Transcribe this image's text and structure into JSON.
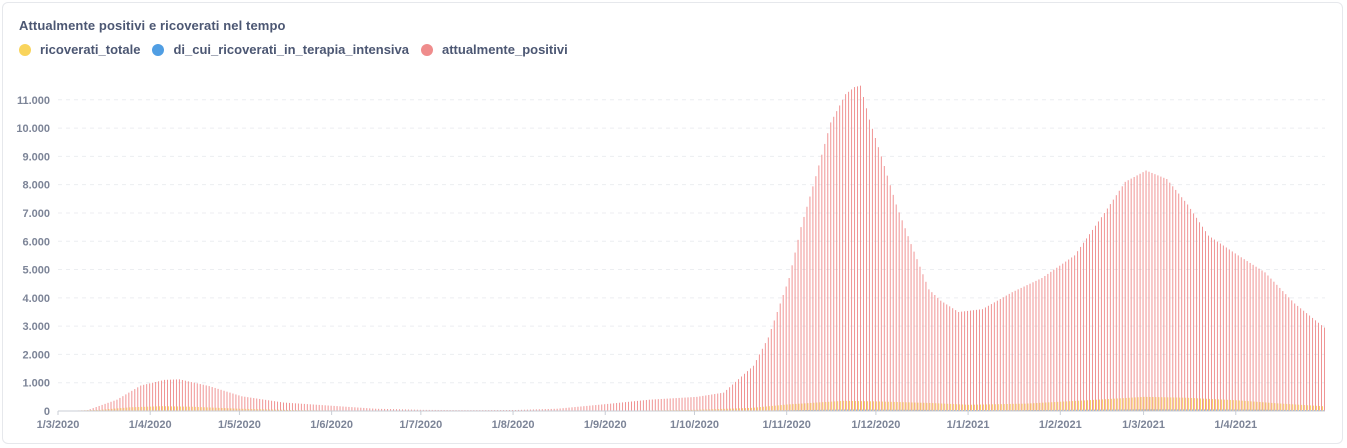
{
  "chart_title": "Attualmente positivi e ricoverati nel tempo",
  "colors": {
    "ricoverati_totale": "#f9d45c",
    "di_cui_ricoverati_in_terapia_intensiva": "#509ee3",
    "attualmente_positivi": "#ef8c8c",
    "grid": "#eceef1",
    "axis": "#c9ced6"
  },
  "chart_data": {
    "type": "bar",
    "title": "Attualmente positivi e ricoverati nel tempo",
    "x_start": "2020-03-01",
    "x_end": "2021-04-30",
    "xlabel": "",
    "ylabel": "",
    "ylim": [
      0,
      11700
    ],
    "y_ticks": [
      0,
      1000,
      2000,
      3000,
      4000,
      5000,
      6000,
      7000,
      8000,
      9000,
      10000,
      11000
    ],
    "y_tick_labels": [
      "0",
      "1.000",
      "2.000",
      "3.000",
      "4.000",
      "5.000",
      "6.000",
      "7.000",
      "8.000",
      "9.000",
      "10.000",
      "11.000"
    ],
    "x_tick_labels": [
      "1/3/2020",
      "1/4/2020",
      "1/5/2020",
      "1/6/2020",
      "1/7/2020",
      "1/8/2020",
      "1/9/2020",
      "1/10/2020",
      "1/11/2020",
      "1/12/2020",
      "1/1/2021",
      "1/2/2021",
      "1/3/2021",
      "1/4/2021"
    ],
    "x_tick_dates": [
      "2020-03-01",
      "2020-04-01",
      "2020-05-01",
      "2020-06-01",
      "2020-07-01",
      "2020-08-01",
      "2020-09-01",
      "2020-10-01",
      "2020-11-01",
      "2020-12-01",
      "2021-01-01",
      "2021-02-01",
      "2021-03-01",
      "2021-04-01"
    ],
    "grid": true,
    "legend_position": "top-left",
    "series": [
      {
        "name": "ricoverati_totale",
        "keypoints": [
          [
            "2020-03-01",
            0
          ],
          [
            "2020-03-15",
            40
          ],
          [
            "2020-03-25",
            130
          ],
          [
            "2020-04-05",
            170
          ],
          [
            "2020-04-15",
            150
          ],
          [
            "2020-05-01",
            80
          ],
          [
            "2020-05-20",
            30
          ],
          [
            "2020-06-15",
            8
          ],
          [
            "2020-07-15",
            3
          ],
          [
            "2020-08-15",
            5
          ],
          [
            "2020-09-15",
            20
          ],
          [
            "2020-10-01",
            40
          ],
          [
            "2020-10-20",
            110
          ],
          [
            "2020-11-01",
            230
          ],
          [
            "2020-11-20",
            360
          ],
          [
            "2020-12-01",
            340
          ],
          [
            "2020-12-20",
            280
          ],
          [
            "2021-01-01",
            220
          ],
          [
            "2021-01-20",
            260
          ],
          [
            "2021-02-10",
            380
          ],
          [
            "2021-03-01",
            500
          ],
          [
            "2021-03-15",
            470
          ],
          [
            "2021-04-01",
            380
          ],
          [
            "2021-04-15",
            270
          ],
          [
            "2021-04-30",
            170
          ]
        ]
      },
      {
        "name": "di_cui_ricoverati_in_terapia_intensiva",
        "keypoints": [
          [
            "2020-03-01",
            0
          ],
          [
            "2020-03-20",
            10
          ],
          [
            "2020-04-05",
            20
          ],
          [
            "2020-05-01",
            8
          ],
          [
            "2020-06-01",
            2
          ],
          [
            "2020-09-01",
            2
          ],
          [
            "2020-10-15",
            8
          ],
          [
            "2020-11-20",
            50
          ],
          [
            "2020-12-15",
            40
          ],
          [
            "2021-01-15",
            30
          ],
          [
            "2021-03-01",
            55
          ],
          [
            "2021-04-01",
            50
          ],
          [
            "2021-04-30",
            30
          ]
        ]
      },
      {
        "name": "attualmente_positivi",
        "keypoints": [
          [
            "2020-03-01",
            0
          ],
          [
            "2020-03-10",
            30
          ],
          [
            "2020-03-20",
            400
          ],
          [
            "2020-03-28",
            900
          ],
          [
            "2020-04-05",
            1100
          ],
          [
            "2020-04-10",
            1120
          ],
          [
            "2020-04-20",
            880
          ],
          [
            "2020-05-01",
            520
          ],
          [
            "2020-05-15",
            300
          ],
          [
            "2020-06-01",
            180
          ],
          [
            "2020-06-15",
            80
          ],
          [
            "2020-07-01",
            40
          ],
          [
            "2020-07-15",
            30
          ],
          [
            "2020-08-01",
            35
          ],
          [
            "2020-08-15",
            80
          ],
          [
            "2020-09-01",
            250
          ],
          [
            "2020-09-15",
            400
          ],
          [
            "2020-10-01",
            500
          ],
          [
            "2020-10-10",
            650
          ],
          [
            "2020-10-20",
            1600
          ],
          [
            "2020-10-25",
            2600
          ],
          [
            "2020-11-01",
            4700
          ],
          [
            "2020-11-05",
            6500
          ],
          [
            "2020-11-10",
            8300
          ],
          [
            "2020-11-15",
            10200
          ],
          [
            "2020-11-20",
            11200
          ],
          [
            "2020-11-23",
            11450
          ],
          [
            "2020-11-25",
            11500
          ],
          [
            "2020-11-28",
            10300
          ],
          [
            "2020-12-02",
            9000
          ],
          [
            "2020-12-07",
            7300
          ],
          [
            "2020-12-12",
            5900
          ],
          [
            "2020-12-18",
            4300
          ],
          [
            "2020-12-22",
            3900
          ],
          [
            "2020-12-28",
            3500
          ],
          [
            "2021-01-05",
            3600
          ],
          [
            "2021-01-15",
            4200
          ],
          [
            "2021-01-25",
            4700
          ],
          [
            "2021-02-05",
            5500
          ],
          [
            "2021-02-15",
            7000
          ],
          [
            "2021-02-22",
            8100
          ],
          [
            "2021-03-01",
            8500
          ],
          [
            "2021-03-08",
            8200
          ],
          [
            "2021-03-15",
            7300
          ],
          [
            "2021-03-22",
            6200
          ],
          [
            "2021-04-01",
            5500
          ],
          [
            "2021-04-10",
            4900
          ],
          [
            "2021-04-20",
            3800
          ],
          [
            "2021-04-30",
            2950
          ]
        ]
      }
    ]
  }
}
